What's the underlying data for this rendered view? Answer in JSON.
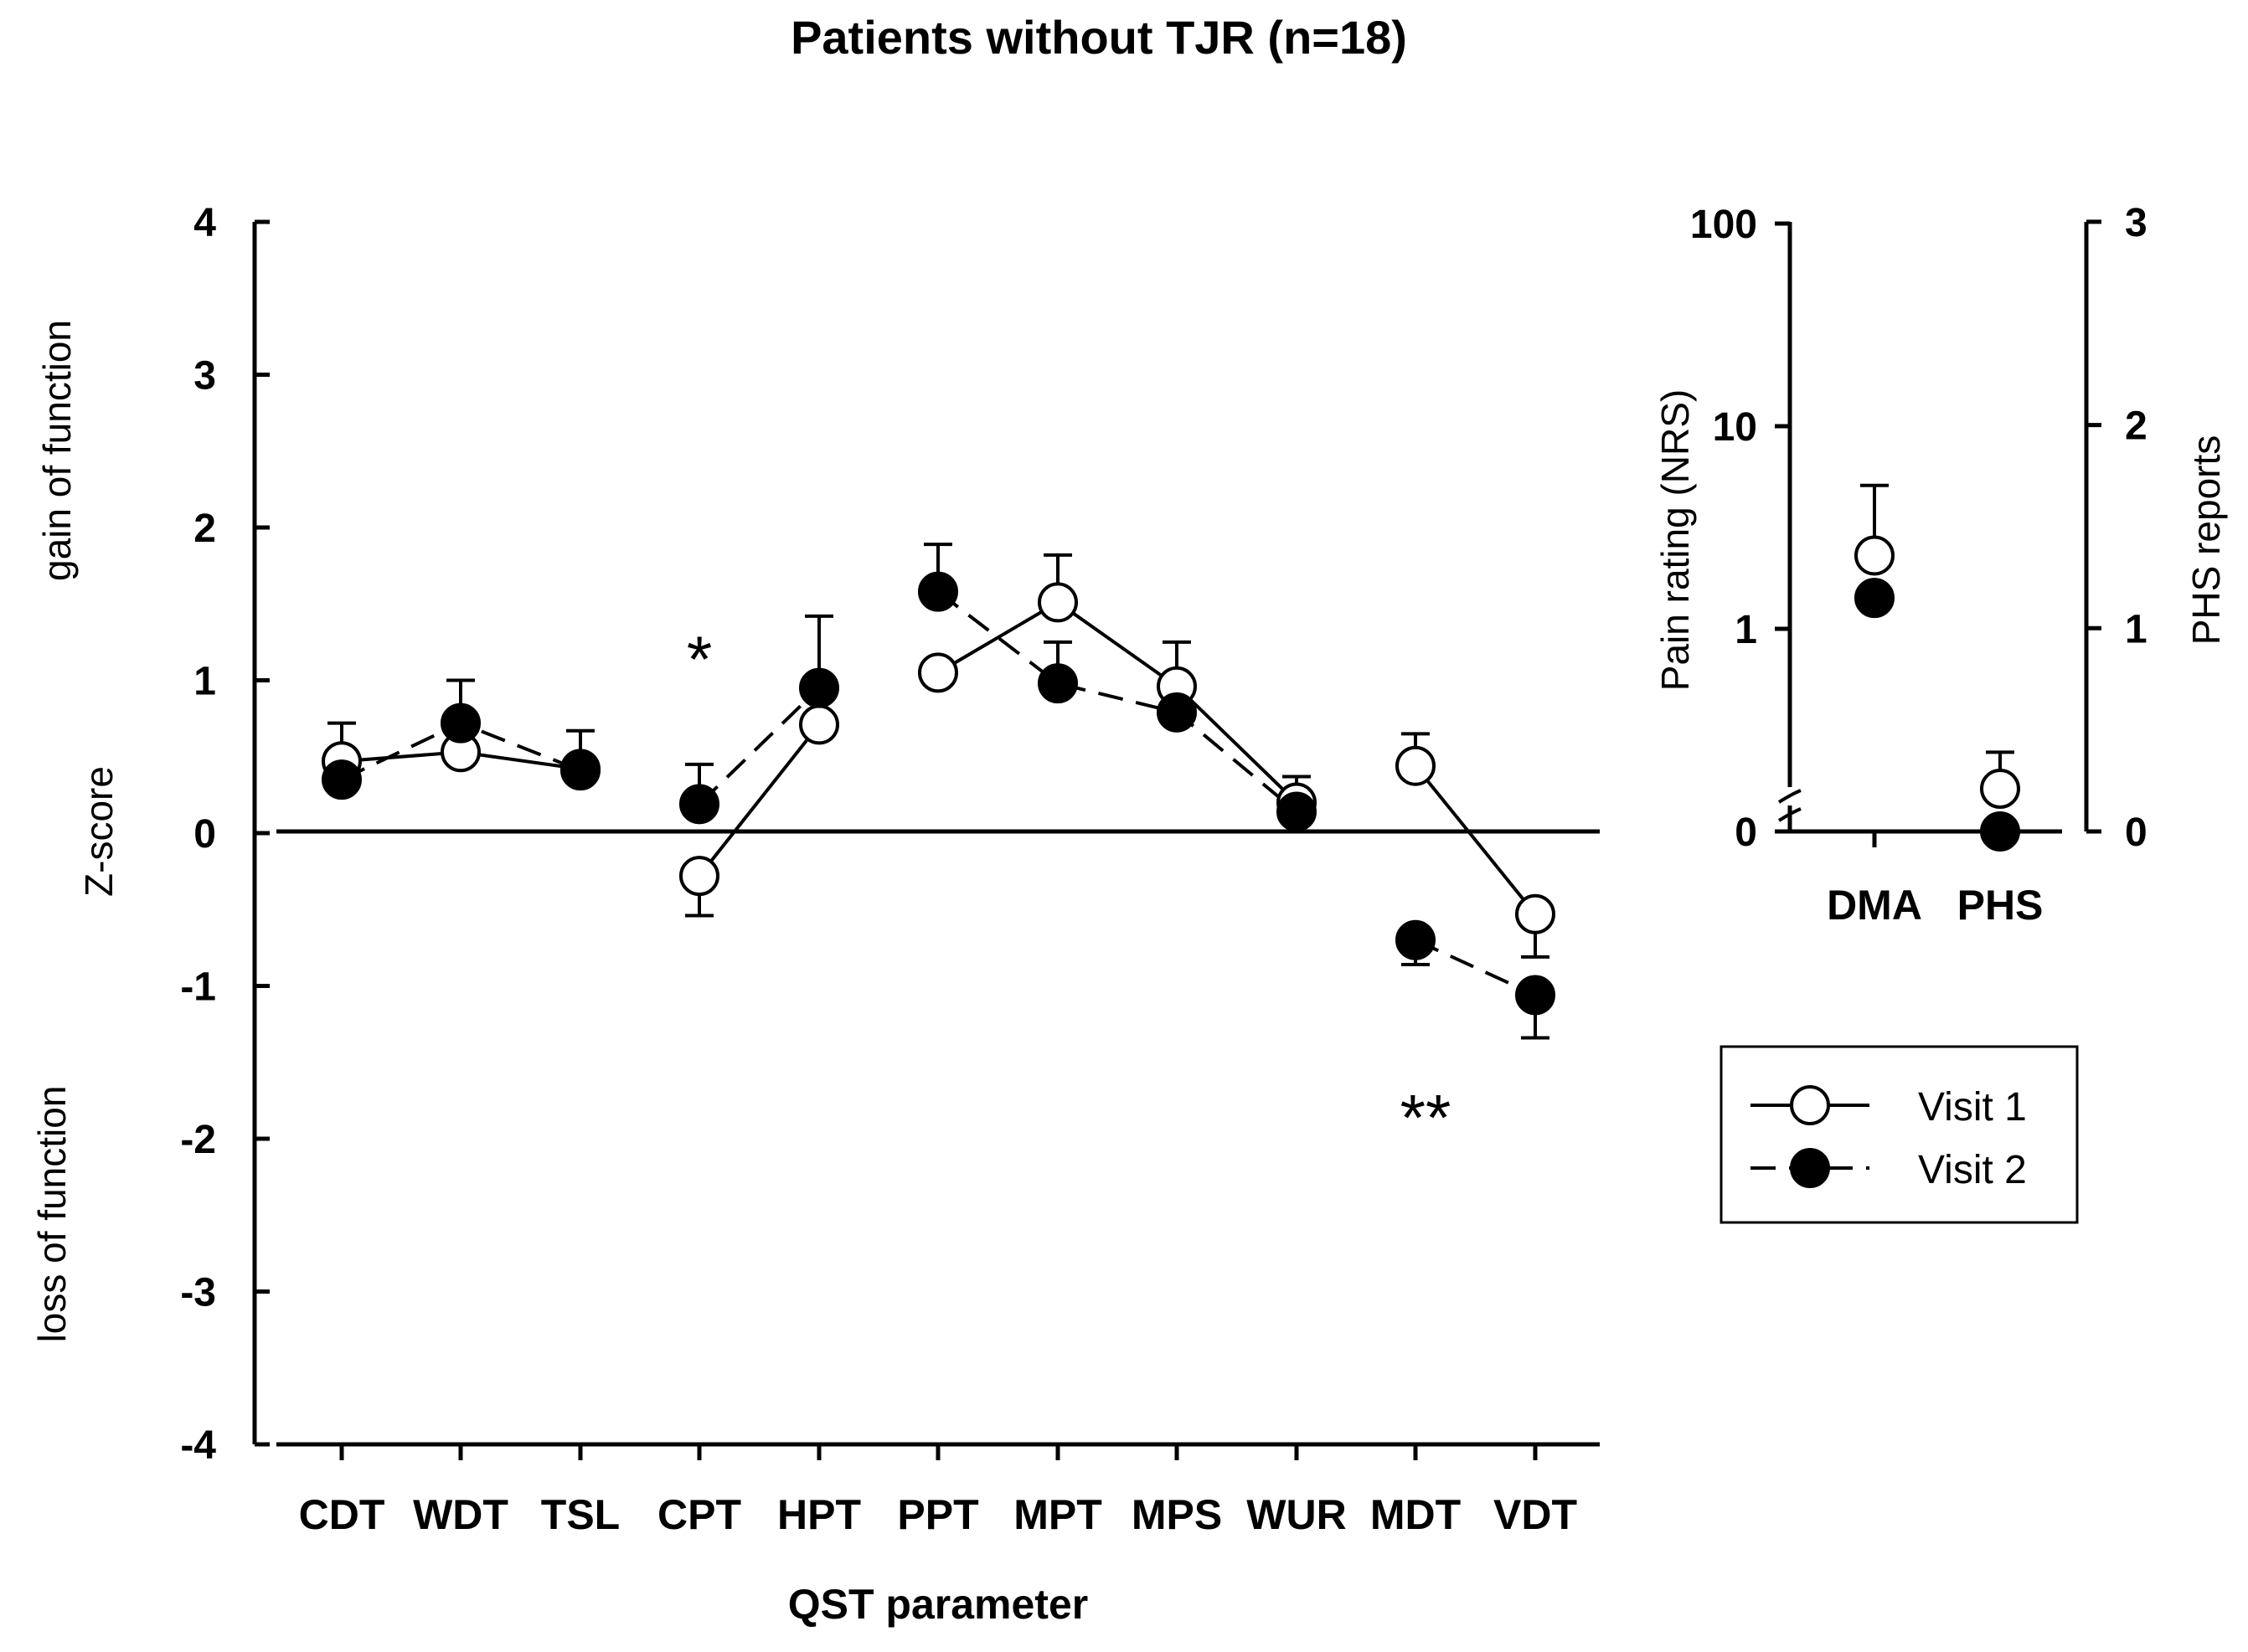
{
  "chart_data": [
    {
      "type": "line",
      "title": "Patients without TJR (n=18)",
      "xlabel": "QST parameter",
      "ylabel": "Z-score",
      "ylabel_top": "gain of function",
      "ylabel_bottom": "loss of function",
      "ylim": [
        -4,
        4
      ],
      "yticks": [
        "4",
        "3",
        "2",
        "1",
        "0",
        "-1",
        "-2",
        "-3",
        "-4"
      ],
      "categories": [
        "CDT",
        "WDT",
        "TSL",
        "CPT",
        "HPT",
        "PPT",
        "MPT",
        "MPS",
        "WUR",
        "MDT",
        "VDT"
      ],
      "groups": [
        [
          0,
          1,
          2
        ],
        [
          3,
          4
        ],
        [
          5,
          6,
          7,
          8
        ],
        [
          9,
          10
        ]
      ],
      "series": [
        {
          "name": "Visit 1",
          "marker": "open-circle",
          "line": "solid",
          "values": [
            0.47,
            0.53,
            0.42,
            -0.28,
            0.71,
            1.05,
            1.51,
            0.96,
            0.2,
            0.44,
            -0.53
          ],
          "error_up": [
            0.25,
            0.0,
            0.25,
            0.0,
            0.32,
            0.0,
            0.31,
            0.29,
            0.17,
            0.21,
            0.0
          ],
          "error_down": [
            0.0,
            0.0,
            0.0,
            0.26,
            0.0,
            0.0,
            0.0,
            0.0,
            0.0,
            0.0,
            0.28
          ]
        },
        {
          "name": "Visit 2",
          "marker": "filled-circle",
          "line": "dashed",
          "values": [
            0.35,
            0.72,
            0.41,
            0.19,
            0.95,
            1.58,
            0.98,
            0.79,
            0.14,
            -0.7,
            -1.06
          ],
          "error_up": [
            0.0,
            0.28,
            0.0,
            0.26,
            0.47,
            0.31,
            0.27,
            0.0,
            0.0,
            0.0,
            0.0
          ],
          "error_down": [
            0.0,
            0.0,
            0.0,
            0.0,
            0.0,
            0.0,
            0.0,
            0.0,
            0.0,
            0.16,
            0.28
          ]
        }
      ],
      "annotations": [
        {
          "text": "*",
          "category": "CPT",
          "y": 1.2
        },
        {
          "text": "**",
          "category": "MDT",
          "y": -1.8
        }
      ]
    },
    {
      "type": "scatter",
      "categories": [
        "DMA",
        "PHS"
      ],
      "left_axis": {
        "label": "Pain rating (NRS)",
        "scale": "log-broken",
        "ticks": [
          "100",
          "10",
          "1",
          "0"
        ],
        "tick_values": [
          100,
          10,
          1,
          0
        ]
      },
      "right_axis": {
        "label": "PHS reports",
        "ticks": [
          "3",
          "2",
          "1",
          "0"
        ],
        "tick_values": [
          3,
          2,
          1,
          0
        ]
      },
      "series": [
        {
          "name": "Visit 1",
          "marker": "open-circle",
          "DMA": 2.3,
          "DMA_error_up": 5.1,
          "PHS": 0.21,
          "PHS_error_up": 0.39
        },
        {
          "name": "Visit 2",
          "marker": "filled-circle",
          "DMA": 1.42,
          "PHS": 0.0
        }
      ]
    }
  ],
  "legend": {
    "items": [
      "Visit 1",
      "Visit 2"
    ],
    "position": "right"
  }
}
